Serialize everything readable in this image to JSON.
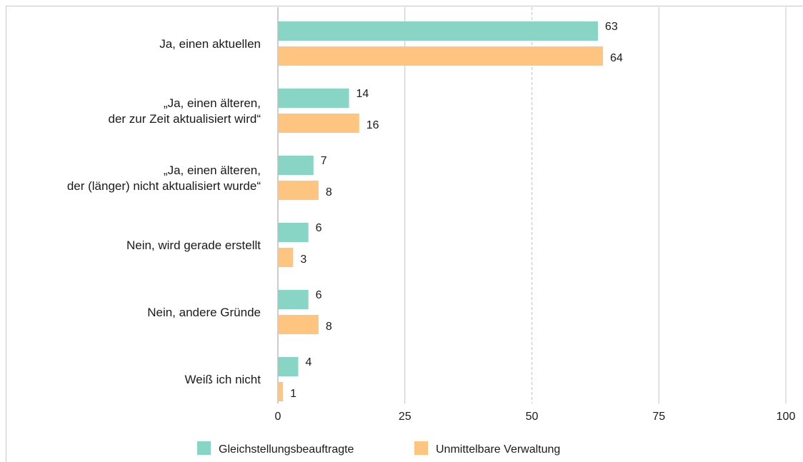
{
  "chart_data": {
    "type": "bar",
    "orientation": "horizontal",
    "categories": [
      [
        "Ja, einen aktuellen"
      ],
      [
        "„Ja, einen älteren,",
        "der zur Zeit aktualisiert wird“"
      ],
      [
        "„Ja, einen älteren,",
        "der (länger) nicht aktualisiert wurde“"
      ],
      [
        "Nein, wird gerade erstellt"
      ],
      [
        "Nein, andere Gründe"
      ],
      [
        "Weiß ich nicht"
      ]
    ],
    "series": [
      {
        "name": "Gleichstellungsbeauftragte",
        "color": "#88d4c5",
        "values": [
          63,
          14,
          7,
          6,
          6,
          4
        ]
      },
      {
        "name": "Unmittelbare Verwaltung",
        "color": "#fdc57f",
        "values": [
          64,
          16,
          8,
          3,
          8,
          1
        ]
      }
    ],
    "xlim": [
      0,
      100
    ],
    "xticks": [
      "0",
      "25",
      "50",
      "75",
      "100"
    ],
    "tick_values": [
      0,
      25,
      50,
      75,
      100
    ],
    "dashed_gridline_at": 50,
    "grid": true,
    "legend_position": "bottom"
  }
}
